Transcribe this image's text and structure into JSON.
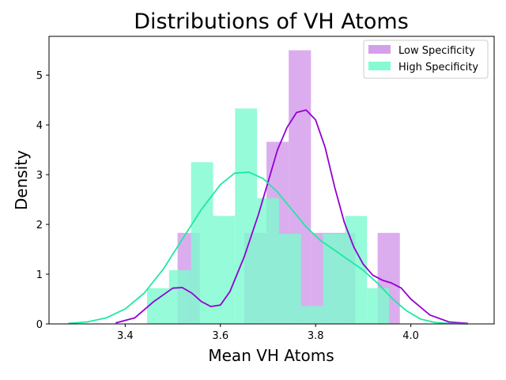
{
  "chart_data": {
    "type": "histogram",
    "title": "Distributions of VH Atoms",
    "xlabel": "Mean VH Atoms",
    "ylabel": "Density",
    "xlim": [
      3.24,
      4.175
    ],
    "ylim": [
      0,
      5.78
    ],
    "xticks": [
      3.4,
      3.6,
      3.8,
      4.0
    ],
    "xtick_labels": [
      "3.4",
      "3.6",
      "3.8",
      "4.0"
    ],
    "yticks": [
      0,
      1,
      2,
      3,
      4,
      5
    ],
    "ytick_labels": [
      "0",
      "1",
      "2",
      "3",
      "4",
      "5"
    ],
    "grid": false,
    "legend_position": "top-right",
    "series": [
      {
        "name": "Low Specificity",
        "color": "#9400d3",
        "bar_color": "#d39bea",
        "bin_edges": [
          3.51,
          3.5567,
          3.6034,
          3.6501,
          3.6968,
          3.7435,
          3.7902,
          3.8369,
          3.8836,
          3.9303,
          3.977
        ],
        "densities": [
          1.83,
          0,
          0,
          1.83,
          3.66,
          5.5,
          1.83,
          1.83,
          0,
          1.83
        ],
        "kde_x": [
          3.38,
          3.42,
          3.46,
          3.5,
          3.52,
          3.54,
          3.56,
          3.58,
          3.6,
          3.62,
          3.65,
          3.68,
          3.7,
          3.72,
          3.74,
          3.76,
          3.78,
          3.8,
          3.82,
          3.84,
          3.86,
          3.88,
          3.9,
          3.92,
          3.94,
          3.96,
          3.98,
          4.0,
          4.04,
          4.08,
          4.12
        ],
        "kde_y": [
          0.02,
          0.12,
          0.45,
          0.72,
          0.73,
          0.62,
          0.45,
          0.35,
          0.38,
          0.65,
          1.35,
          2.2,
          2.85,
          3.5,
          3.95,
          4.25,
          4.3,
          4.1,
          3.55,
          2.75,
          2.05,
          1.55,
          1.2,
          0.98,
          0.88,
          0.82,
          0.72,
          0.5,
          0.18,
          0.04,
          0.01
        ]
      },
      {
        "name": "High Specificity",
        "color": "#1de9a0",
        "bar_color": "#7ffad0",
        "bin_edges": [
          3.446,
          3.4922,
          3.5384,
          3.5846,
          3.6308,
          3.677,
          3.7232,
          3.7694,
          3.8156,
          3.8618,
          3.908,
          3.9542
        ],
        "densities": [
          0.72,
          1.08,
          3.25,
          2.17,
          4.33,
          2.53,
          1.81,
          0.36,
          1.81,
          2.17,
          0.72
        ],
        "kde_x": [
          3.28,
          3.32,
          3.36,
          3.4,
          3.44,
          3.48,
          3.52,
          3.56,
          3.6,
          3.63,
          3.66,
          3.69,
          3.72,
          3.75,
          3.78,
          3.81,
          3.84,
          3.87,
          3.9,
          3.93,
          3.96,
          3.99,
          4.02,
          4.05,
          4.08,
          4.12
        ],
        "kde_y": [
          0.01,
          0.04,
          0.12,
          0.3,
          0.62,
          1.1,
          1.7,
          2.3,
          2.8,
          3.03,
          3.05,
          2.92,
          2.65,
          2.3,
          1.95,
          1.68,
          1.48,
          1.28,
          1.08,
          0.82,
          0.52,
          0.27,
          0.1,
          0.03,
          0.01,
          0.0
        ]
      }
    ]
  }
}
